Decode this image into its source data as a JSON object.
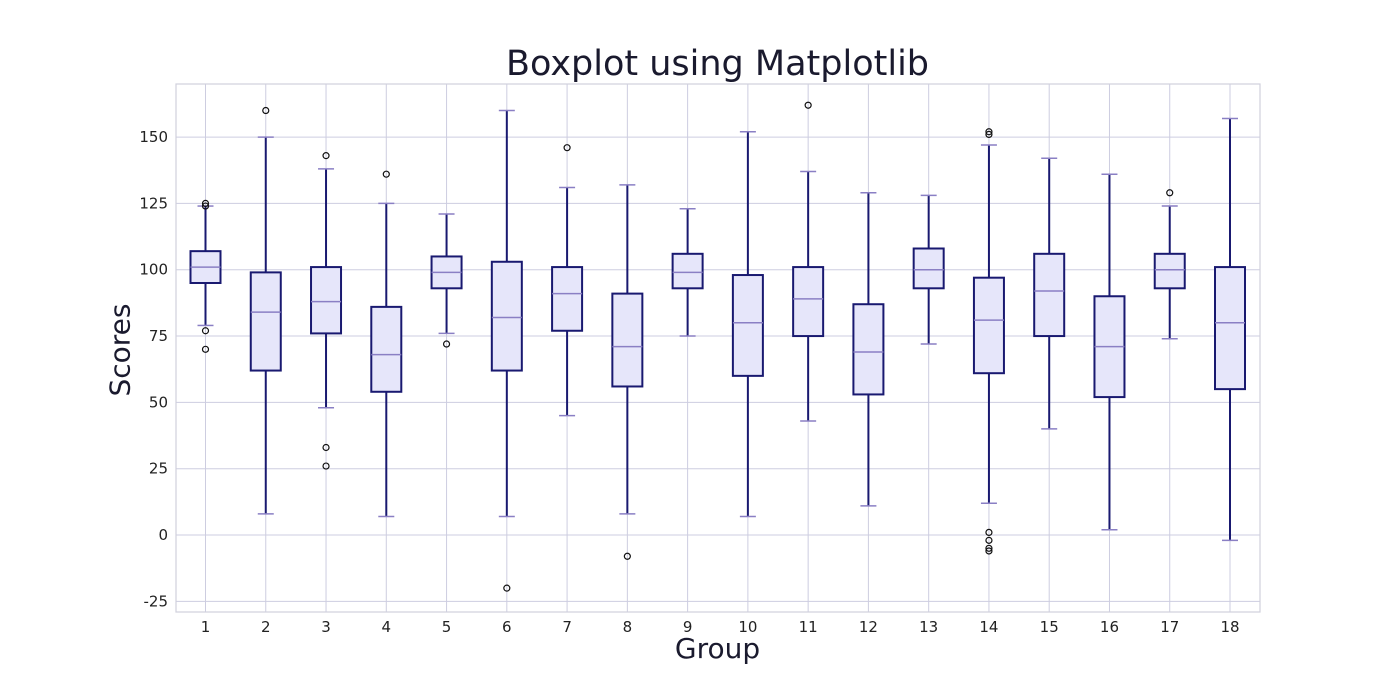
{
  "chart_data": {
    "type": "boxplot",
    "title": "Boxplot using Matplotlib",
    "xlabel": "Group",
    "ylabel": "Scores",
    "ylim": [
      -29,
      170
    ],
    "yticks": [
      -25,
      0,
      25,
      50,
      75,
      100,
      125,
      150
    ],
    "grid": true,
    "categories": [
      "1",
      "2",
      "3",
      "4",
      "5",
      "6",
      "7",
      "8",
      "9",
      "10",
      "11",
      "12",
      "13",
      "14",
      "15",
      "16",
      "17",
      "18"
    ],
    "boxes": [
      {
        "group": "1",
        "whisker_low": 79,
        "q1": 95,
        "median": 101,
        "q3": 107,
        "whisker_high": 124,
        "outliers": [
          70,
          77,
          124,
          125
        ]
      },
      {
        "group": "2",
        "whisker_low": 8,
        "q1": 62,
        "median": 84,
        "q3": 99,
        "whisker_high": 150,
        "outliers": [
          160
        ]
      },
      {
        "group": "3",
        "whisker_low": 48,
        "q1": 76,
        "median": 88,
        "q3": 101,
        "whisker_high": 138,
        "outliers": [
          26,
          33,
          143
        ]
      },
      {
        "group": "4",
        "whisker_low": 7,
        "q1": 54,
        "median": 68,
        "q3": 86,
        "whisker_high": 125,
        "outliers": [
          136
        ]
      },
      {
        "group": "5",
        "whisker_low": 76,
        "q1": 93,
        "median": 99,
        "q3": 105,
        "whisker_high": 121,
        "outliers": [
          72
        ]
      },
      {
        "group": "6",
        "whisker_low": 7,
        "q1": 62,
        "median": 82,
        "q3": 103,
        "whisker_high": 160,
        "outliers": [
          -20
        ]
      },
      {
        "group": "7",
        "whisker_low": 45,
        "q1": 77,
        "median": 91,
        "q3": 101,
        "whisker_high": 131,
        "outliers": [
          146
        ]
      },
      {
        "group": "8",
        "whisker_low": 8,
        "q1": 56,
        "median": 71,
        "q3": 91,
        "whisker_high": 132,
        "outliers": [
          -8
        ]
      },
      {
        "group": "9",
        "whisker_low": 75,
        "q1": 93,
        "median": 99,
        "q3": 106,
        "whisker_high": 123,
        "outliers": []
      },
      {
        "group": "10",
        "whisker_low": 7,
        "q1": 60,
        "median": 80,
        "q3": 98,
        "whisker_high": 152,
        "outliers": []
      },
      {
        "group": "11",
        "whisker_low": 43,
        "q1": 75,
        "median": 89,
        "q3": 101,
        "whisker_high": 137,
        "outliers": [
          162
        ]
      },
      {
        "group": "12",
        "whisker_low": 11,
        "q1": 53,
        "median": 69,
        "q3": 87,
        "whisker_high": 129,
        "outliers": []
      },
      {
        "group": "13",
        "whisker_low": 72,
        "q1": 93,
        "median": 100,
        "q3": 108,
        "whisker_high": 128,
        "outliers": []
      },
      {
        "group": "14",
        "whisker_low": 12,
        "q1": 61,
        "median": 81,
        "q3": 97,
        "whisker_high": 147,
        "outliers": [
          -6,
          -5,
          -2,
          1,
          151,
          152
        ]
      },
      {
        "group": "15",
        "whisker_low": 40,
        "q1": 75,
        "median": 92,
        "q3": 106,
        "whisker_high": 142,
        "outliers": []
      },
      {
        "group": "16",
        "whisker_low": 2,
        "q1": 52,
        "median": 71,
        "q3": 90,
        "whisker_high": 136,
        "outliers": []
      },
      {
        "group": "17",
        "whisker_low": 74,
        "q1": 93,
        "median": 100,
        "q3": 106,
        "whisker_high": 124,
        "outliers": [
          129
        ]
      },
      {
        "group": "18",
        "whisker_low": -2,
        "q1": 55,
        "median": 80,
        "q3": 101,
        "whisker_high": 157,
        "outliers": []
      }
    ],
    "colors": {
      "box_fill": "#e6e6fa",
      "box_edge": "#191970",
      "median": "#8a7fc4",
      "grid": "#cdcde0",
      "axis": "#d0d0dc",
      "text": "#222222"
    }
  }
}
